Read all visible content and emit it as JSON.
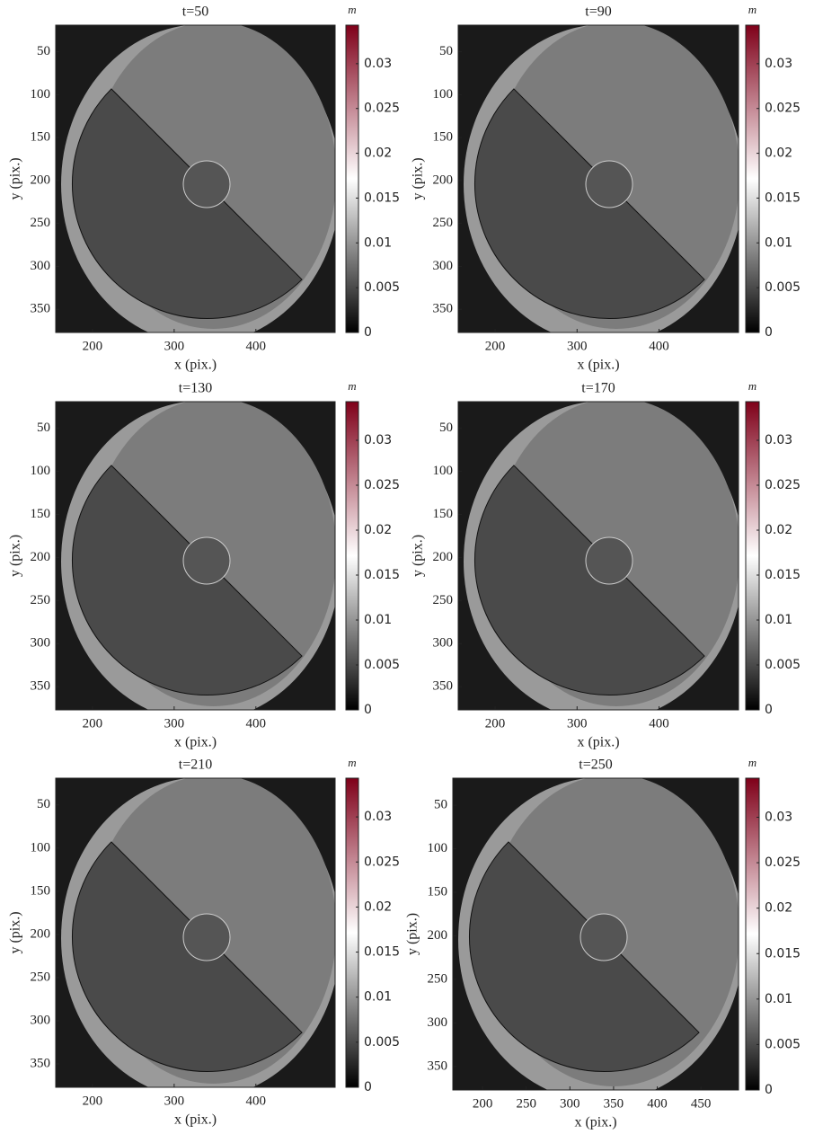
{
  "chart_data": [
    {
      "type": "image",
      "title": "t=50",
      "xlabel": "x (pix.)",
      "ylabel": "y (pix.)",
      "xlim": [
        155,
        497
      ],
      "ylim": [
        19,
        377
      ],
      "yreverse": true,
      "xticks": [
        200,
        300,
        400
      ],
      "yticks": [
        50,
        100,
        150,
        200,
        250,
        300,
        350
      ],
      "colorbar": {
        "label": "m",
        "lim": [
          0,
          0.0343
        ],
        "ticks": [
          0,
          0.005,
          0.01,
          0.015,
          0.02,
          0.025,
          0.03
        ],
        "colormap": [
          "#000000",
          "#ffffff",
          "#7f0019"
        ]
      }
    },
    {
      "type": "image",
      "title": "t=90",
      "xlabel": "x (pix.)",
      "ylabel": "y (pix.)",
      "xlim": [
        155,
        497
      ],
      "ylim": [
        19,
        377
      ],
      "yreverse": true,
      "xticks": [
        200,
        300,
        400
      ],
      "yticks": [
        50,
        100,
        150,
        200,
        250,
        300,
        350
      ],
      "colorbar": {
        "label": "m",
        "lim": [
          0,
          0.0343
        ],
        "ticks": [
          0,
          0.005,
          0.01,
          0.015,
          0.02,
          0.025,
          0.03
        ],
        "colormap": [
          "#000000",
          "#ffffff",
          "#7f0019"
        ]
      }
    },
    {
      "type": "image",
      "title": "t=130",
      "xlabel": "x (pix.)",
      "ylabel": "y (pix.)",
      "xlim": [
        155,
        497
      ],
      "ylim": [
        19,
        377
      ],
      "yreverse": true,
      "xticks": [
        200,
        300,
        400
      ],
      "yticks": [
        50,
        100,
        150,
        200,
        250,
        300,
        350
      ],
      "colorbar": {
        "label": "m",
        "lim": [
          0,
          0.0343
        ],
        "ticks": [
          0,
          0.005,
          0.01,
          0.015,
          0.02,
          0.025,
          0.03
        ],
        "colormap": [
          "#000000",
          "#ffffff",
          "#7f0019"
        ]
      }
    },
    {
      "type": "image",
      "title": "t=170",
      "xlabel": "x (pix.)",
      "ylabel": "y (pix.)",
      "xlim": [
        155,
        497
      ],
      "ylim": [
        19,
        377
      ],
      "yreverse": true,
      "xticks": [
        200,
        300,
        400
      ],
      "yticks": [
        50,
        100,
        150,
        200,
        250,
        300,
        350
      ],
      "colorbar": {
        "label": "m",
        "lim": [
          0,
          0.0343
        ],
        "ticks": [
          0,
          0.005,
          0.01,
          0.015,
          0.02,
          0.025,
          0.03
        ],
        "colormap": [
          "#000000",
          "#ffffff",
          "#7f0019"
        ]
      }
    },
    {
      "type": "image",
      "title": "t=210",
      "xlabel": "x (pix.)",
      "ylabel": "y (pix.)",
      "xlim": [
        155,
        497
      ],
      "ylim": [
        19,
        377
      ],
      "yreverse": true,
      "xticks": [
        200,
        300,
        400
      ],
      "yticks": [
        50,
        100,
        150,
        200,
        250,
        300,
        350
      ],
      "colorbar": {
        "label": "m",
        "lim": [
          0,
          0.0343
        ],
        "ticks": [
          0,
          0.005,
          0.01,
          0.015,
          0.02,
          0.025,
          0.03
        ],
        "colormap": [
          "#000000",
          "#ffffff",
          "#7f0019"
        ]
      }
    },
    {
      "type": "image",
      "title": "t=250",
      "xlabel": "x (pix.)",
      "ylabel": "y (pix.)",
      "xlim": [
        166,
        493
      ],
      "ylim": [
        19,
        377
      ],
      "yreverse": true,
      "xticks": [
        200,
        250,
        300,
        350,
        400,
        450
      ],
      "yticks": [
        50,
        100,
        150,
        200,
        250,
        300,
        350
      ],
      "colorbar": {
        "label": "m",
        "lim": [
          0,
          0.0343
        ],
        "ticks": [
          0,
          0.005,
          0.01,
          0.015,
          0.02,
          0.025,
          0.03
        ],
        "colormap": [
          "#000000",
          "#ffffff",
          "#7f0019"
        ]
      }
    }
  ]
}
